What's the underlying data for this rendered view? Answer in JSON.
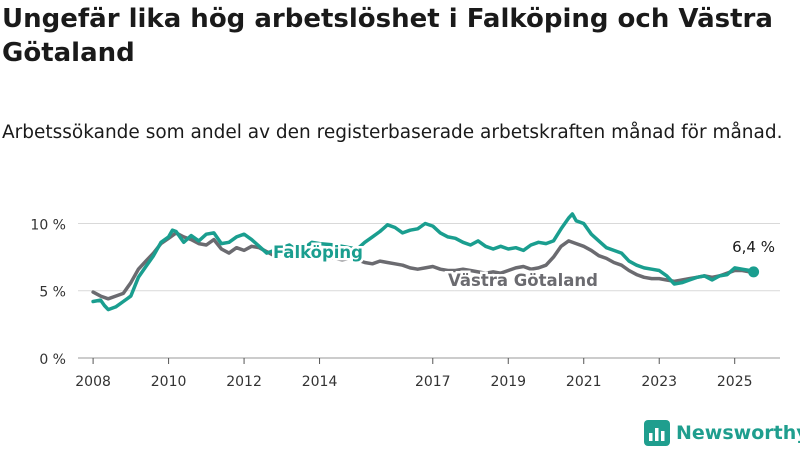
{
  "title": "Ungefär lika hög arbetslöshet i Falköping och Västra Götaland",
  "subtitle": "Arbetssökande som andel av den registerbaserade arbetskraften månad för månad.",
  "brand": "Newsworthy",
  "colors": {
    "falkoping": "#1a9e8f",
    "vg": "#6b6b70",
    "grid": "#d9d9d9",
    "axis": "#555555"
  },
  "chart_data": {
    "type": "line",
    "title": "Ungefär lika hög arbetslöshet i Falköping och Västra Götaland",
    "ylim": [
      0,
      11
    ],
    "xlim": [
      2007.6,
      2026.2
    ],
    "y_ticks": [
      {
        "value": 0,
        "label": "0 %"
      },
      {
        "value": 5,
        "label": "5 %"
      },
      {
        "value": 10,
        "label": "10 %"
      }
    ],
    "x_ticks": [
      {
        "value": 2008,
        "label": "2008"
      },
      {
        "value": 2010,
        "label": "2010"
      },
      {
        "value": 2012,
        "label": "2012"
      },
      {
        "value": 2014,
        "label": "2014"
      },
      {
        "value": 2017,
        "label": "2017"
      },
      {
        "value": 2019,
        "label": "2019"
      },
      {
        "value": 2021,
        "label": "2021"
      },
      {
        "value": 2023,
        "label": "2023"
      },
      {
        "value": 2025,
        "label": "2025"
      }
    ],
    "end_label": "6,4 %",
    "series": [
      {
        "name": "Västra Götaland",
        "points": [
          [
            2008.0,
            4.9
          ],
          [
            2008.2,
            4.6
          ],
          [
            2008.4,
            4.4
          ],
          [
            2008.6,
            4.6
          ],
          [
            2008.8,
            4.8
          ],
          [
            2009.0,
            5.6
          ],
          [
            2009.2,
            6.6
          ],
          [
            2009.4,
            7.2
          ],
          [
            2009.6,
            7.8
          ],
          [
            2009.8,
            8.5
          ],
          [
            2010.0,
            8.9
          ],
          [
            2010.2,
            9.3
          ],
          [
            2010.4,
            9.0
          ],
          [
            2010.6,
            8.8
          ],
          [
            2010.8,
            8.5
          ],
          [
            2011.0,
            8.4
          ],
          [
            2011.2,
            8.8
          ],
          [
            2011.4,
            8.1
          ],
          [
            2011.6,
            7.8
          ],
          [
            2011.8,
            8.2
          ],
          [
            2012.0,
            8.0
          ],
          [
            2012.2,
            8.3
          ],
          [
            2012.4,
            8.2
          ],
          [
            2012.6,
            7.9
          ],
          [
            2012.8,
            7.6
          ],
          [
            2013.0,
            7.8
          ],
          [
            2013.2,
            8.0
          ],
          [
            2013.4,
            8.1
          ],
          [
            2013.6,
            7.9
          ],
          [
            2013.8,
            7.7
          ],
          [
            2014.0,
            7.6
          ],
          [
            2014.2,
            7.5
          ],
          [
            2014.4,
            7.4
          ],
          [
            2014.6,
            7.3
          ],
          [
            2014.8,
            7.4
          ],
          [
            2015.0,
            7.3
          ],
          [
            2015.2,
            7.1
          ],
          [
            2015.4,
            7.0
          ],
          [
            2015.6,
            7.2
          ],
          [
            2015.8,
            7.1
          ],
          [
            2016.0,
            7.0
          ],
          [
            2016.2,
            6.9
          ],
          [
            2016.4,
            6.7
          ],
          [
            2016.6,
            6.6
          ],
          [
            2016.8,
            6.7
          ],
          [
            2017.0,
            6.8
          ],
          [
            2017.2,
            6.6
          ],
          [
            2017.4,
            6.5
          ],
          [
            2017.6,
            6.5
          ],
          [
            2017.8,
            6.6
          ],
          [
            2018.0,
            6.5
          ],
          [
            2018.2,
            6.4
          ],
          [
            2018.4,
            6.3
          ],
          [
            2018.6,
            6.4
          ],
          [
            2018.8,
            6.3
          ],
          [
            2019.0,
            6.5
          ],
          [
            2019.2,
            6.7
          ],
          [
            2019.4,
            6.8
          ],
          [
            2019.6,
            6.6
          ],
          [
            2019.8,
            6.7
          ],
          [
            2020.0,
            6.9
          ],
          [
            2020.2,
            7.5
          ],
          [
            2020.4,
            8.3
          ],
          [
            2020.6,
            8.7
          ],
          [
            2020.8,
            8.5
          ],
          [
            2021.0,
            8.3
          ],
          [
            2021.2,
            8.0
          ],
          [
            2021.4,
            7.6
          ],
          [
            2021.6,
            7.4
          ],
          [
            2021.8,
            7.1
          ],
          [
            2022.0,
            6.9
          ],
          [
            2022.2,
            6.5
          ],
          [
            2022.4,
            6.2
          ],
          [
            2022.6,
            6.0
          ],
          [
            2022.8,
            5.9
          ],
          [
            2023.0,
            5.9
          ],
          [
            2023.2,
            5.8
          ],
          [
            2023.4,
            5.7
          ],
          [
            2023.6,
            5.8
          ],
          [
            2023.8,
            5.9
          ],
          [
            2024.0,
            6.0
          ],
          [
            2024.2,
            6.1
          ],
          [
            2024.4,
            6.0
          ],
          [
            2024.6,
            6.1
          ],
          [
            2024.8,
            6.3
          ],
          [
            2025.0,
            6.5
          ],
          [
            2025.2,
            6.5
          ],
          [
            2025.4,
            6.4
          ]
        ]
      },
      {
        "name": "Falköping",
        "points": [
          [
            2008.0,
            4.2
          ],
          [
            2008.2,
            4.3
          ],
          [
            2008.3,
            3.9
          ],
          [
            2008.4,
            3.6
          ],
          [
            2008.6,
            3.8
          ],
          [
            2008.8,
            4.2
          ],
          [
            2009.0,
            4.6
          ],
          [
            2009.2,
            6.0
          ],
          [
            2009.4,
            6.8
          ],
          [
            2009.6,
            7.6
          ],
          [
            2009.8,
            8.6
          ],
          [
            2010.0,
            9.0
          ],
          [
            2010.1,
            9.5
          ],
          [
            2010.2,
            9.4
          ],
          [
            2010.4,
            8.6
          ],
          [
            2010.6,
            9.1
          ],
          [
            2010.8,
            8.7
          ],
          [
            2011.0,
            9.2
          ],
          [
            2011.2,
            9.3
          ],
          [
            2011.4,
            8.5
          ],
          [
            2011.6,
            8.6
          ],
          [
            2011.8,
            9.0
          ],
          [
            2012.0,
            9.2
          ],
          [
            2012.2,
            8.8
          ],
          [
            2012.4,
            8.3
          ],
          [
            2012.6,
            7.8
          ],
          [
            2012.8,
            8.0
          ],
          [
            2013.0,
            8.2
          ],
          [
            2013.2,
            8.4
          ],
          [
            2013.4,
            8.0
          ],
          [
            2013.6,
            8.2
          ],
          [
            2013.8,
            8.6
          ],
          [
            2014.0,
            8.5
          ],
          [
            2014.4,
            8.4
          ],
          [
            2014.8,
            8.2
          ],
          [
            2015.0,
            8.1
          ],
          [
            2015.2,
            8.6
          ],
          [
            2015.4,
            9.0
          ],
          [
            2015.6,
            9.4
          ],
          [
            2015.8,
            9.9
          ],
          [
            2016.0,
            9.7
          ],
          [
            2016.2,
            9.3
          ],
          [
            2016.4,
            9.5
          ],
          [
            2016.6,
            9.6
          ],
          [
            2016.8,
            10.0
          ],
          [
            2017.0,
            9.8
          ],
          [
            2017.2,
            9.3
          ],
          [
            2017.4,
            9.0
          ],
          [
            2017.6,
            8.9
          ],
          [
            2017.8,
            8.6
          ],
          [
            2018.0,
            8.4
          ],
          [
            2018.2,
            8.7
          ],
          [
            2018.4,
            8.3
          ],
          [
            2018.6,
            8.1
          ],
          [
            2018.8,
            8.3
          ],
          [
            2019.0,
            8.1
          ],
          [
            2019.2,
            8.2
          ],
          [
            2019.4,
            8.0
          ],
          [
            2019.6,
            8.4
          ],
          [
            2019.8,
            8.6
          ],
          [
            2020.0,
            8.5
          ],
          [
            2020.2,
            8.7
          ],
          [
            2020.4,
            9.6
          ],
          [
            2020.6,
            10.4
          ],
          [
            2020.7,
            10.7
          ],
          [
            2020.8,
            10.2
          ],
          [
            2021.0,
            10.0
          ],
          [
            2021.2,
            9.2
          ],
          [
            2021.4,
            8.7
          ],
          [
            2021.6,
            8.2
          ],
          [
            2021.8,
            8.0
          ],
          [
            2022.0,
            7.8
          ],
          [
            2022.2,
            7.2
          ],
          [
            2022.4,
            6.9
          ],
          [
            2022.6,
            6.7
          ],
          [
            2022.8,
            6.6
          ],
          [
            2023.0,
            6.5
          ],
          [
            2023.2,
            6.1
          ],
          [
            2023.4,
            5.5
          ],
          [
            2023.6,
            5.6
          ],
          [
            2023.8,
            5.8
          ],
          [
            2024.0,
            6.0
          ],
          [
            2024.2,
            6.1
          ],
          [
            2024.4,
            5.8
          ],
          [
            2024.6,
            6.1
          ],
          [
            2024.8,
            6.2
          ],
          [
            2025.0,
            6.7
          ],
          [
            2025.2,
            6.6
          ],
          [
            2025.4,
            6.5
          ],
          [
            2025.5,
            6.4
          ]
        ]
      }
    ],
    "labels": {
      "falkoping": "Falköping",
      "vg": "Västra Götaland"
    }
  }
}
